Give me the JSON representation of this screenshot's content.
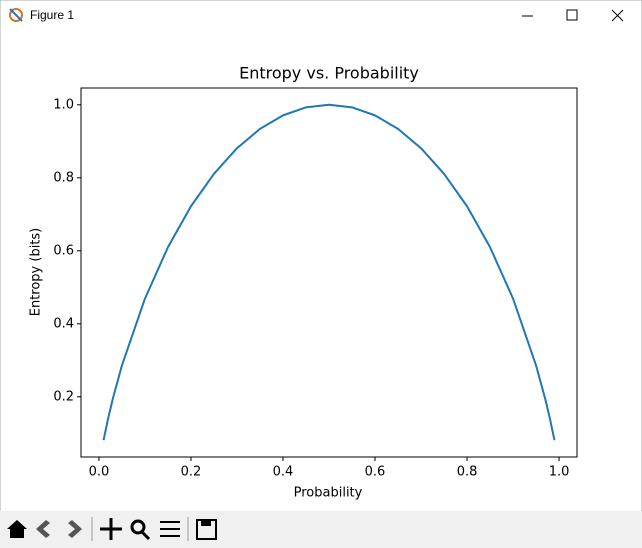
{
  "window": {
    "title": "Figure 1"
  },
  "chart_data": {
    "type": "line",
    "title": "Entropy vs. Probability",
    "x_label": "Probability",
    "y_label": "Entropy (bits)",
    "x": [
      0.01,
      0.02,
      0.03,
      0.05,
      0.1,
      0.15,
      0.2,
      0.25,
      0.3,
      0.35,
      0.4,
      0.45,
      0.5,
      0.55,
      0.6,
      0.65,
      0.7,
      0.75,
      0.8,
      0.85,
      0.9,
      0.95,
      0.97,
      0.98,
      0.99
    ],
    "values": [
      0.081,
      0.141,
      0.194,
      0.286,
      0.469,
      0.61,
      0.722,
      0.811,
      0.881,
      0.934,
      0.971,
      0.993,
      1.0,
      0.993,
      0.971,
      0.934,
      0.881,
      0.811,
      0.722,
      0.61,
      0.469,
      0.286,
      0.194,
      0.141,
      0.081
    ],
    "color": "#1f77b4",
    "xlim": [
      -0.039,
      1.039
    ],
    "ylim": [
      0.035,
      1.046
    ],
    "xticks": [
      {
        "value": 0,
        "label": "0.0"
      },
      0.2,
      0.4,
      0.6,
      0.8,
      {
        "value": 1,
        "label": "1.0"
      }
    ],
    "yticks": [
      0.2,
      0.4,
      0.6,
      0.8,
      {
        "value": 1,
        "label": "1.0"
      }
    ],
    "grid": false
  }
}
